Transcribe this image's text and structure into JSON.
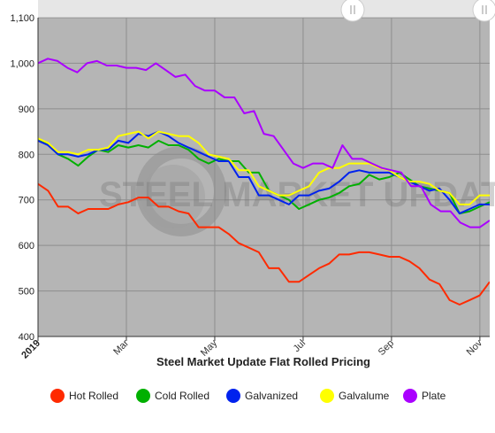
{
  "chart_data": {
    "type": "line",
    "title": "Steel Market Update Flat Rolled Pricing",
    "watermark": "STEEL MARKET UPDATE",
    "ylim": [
      400,
      1100
    ],
    "yticks": [
      400,
      500,
      600,
      700,
      800,
      900,
      "1,000",
      "1,100"
    ],
    "xlim": [
      0,
      46
    ],
    "xticks": [
      {
        "x": 0,
        "label": "2019",
        "bold": true
      },
      {
        "x": 9,
        "label": "Mar",
        "bold": false
      },
      {
        "x": 18,
        "label": "May",
        "bold": false
      },
      {
        "x": 27,
        "label": "Jul",
        "bold": false
      },
      {
        "x": 36,
        "label": "Sep",
        "bold": false
      },
      {
        "x": 45,
        "label": "Nov",
        "bold": false
      }
    ],
    "grid": true,
    "background": "#b5b5b5",
    "legend_position": "bottom",
    "series": [
      {
        "name": "Hot Rolled",
        "color": "#ff2a00",
        "values": [
          735,
          720,
          685,
          685,
          670,
          680,
          680,
          680,
          690,
          695,
          705,
          705,
          685,
          685,
          675,
          670,
          640,
          640,
          640,
          625,
          605,
          595,
          585,
          550,
          550,
          520,
          520,
          535,
          550,
          560,
          580,
          580,
          585,
          585,
          580,
          575,
          575,
          565,
          550,
          525,
          515,
          480,
          470,
          480,
          490,
          520
        ]
      },
      {
        "name": "Cold Rolled",
        "color": "#00b000",
        "values": [
          835,
          820,
          800,
          790,
          775,
          795,
          810,
          805,
          820,
          815,
          820,
          815,
          830,
          820,
          820,
          810,
          790,
          780,
          790,
          785,
          785,
          760,
          760,
          720,
          710,
          700,
          680,
          690,
          700,
          705,
          715,
          730,
          735,
          755,
          745,
          750,
          760,
          745,
          730,
          725,
          720,
          715,
          670,
          675,
          685,
          695
        ]
      },
      {
        "name": "Galvanized",
        "color": "#0022ee",
        "values": [
          830,
          820,
          800,
          800,
          795,
          800,
          810,
          810,
          830,
          825,
          845,
          840,
          850,
          840,
          825,
          815,
          805,
          795,
          785,
          785,
          750,
          750,
          710,
          710,
          700,
          690,
          710,
          710,
          720,
          725,
          740,
          760,
          765,
          760,
          760,
          760,
          750,
          740,
          730,
          720,
          725,
          700,
          670,
          680,
          690,
          690
        ]
      },
      {
        "name": "Galvalume",
        "color": "#ffff00",
        "values": [
          835,
          825,
          805,
          805,
          800,
          810,
          810,
          815,
          840,
          845,
          850,
          835,
          850,
          845,
          840,
          840,
          825,
          800,
          795,
          790,
          765,
          765,
          730,
          720,
          710,
          710,
          720,
          730,
          760,
          770,
          770,
          780,
          780,
          780,
          770,
          765,
          750,
          740,
          740,
          735,
          720,
          715,
          690,
          690,
          710,
          710
        ]
      },
      {
        "name": "Plate",
        "color": "#aa00ff",
        "values": [
          1000,
          1010,
          1005,
          990,
          980,
          1000,
          1005,
          995,
          995,
          990,
          990,
          985,
          1000,
          985,
          970,
          975,
          950,
          940,
          940,
          925,
          925,
          890,
          895,
          845,
          840,
          810,
          780,
          770,
          780,
          780,
          770,
          820,
          790,
          790,
          780,
          770,
          765,
          760,
          730,
          730,
          690,
          675,
          675,
          650,
          640,
          640,
          655
        ]
      }
    ]
  }
}
